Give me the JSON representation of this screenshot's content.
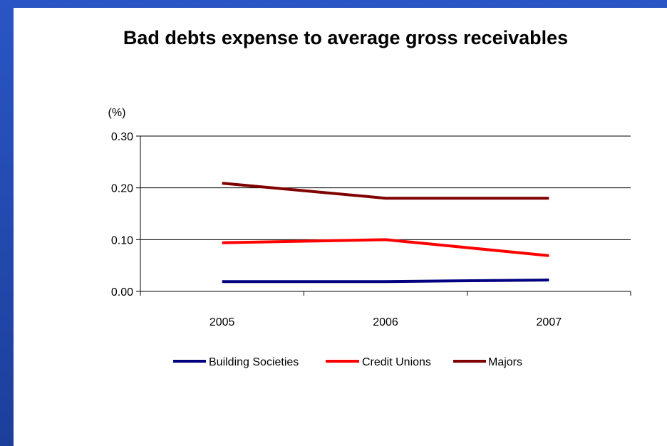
{
  "chart_data": {
    "type": "line",
    "title": "Bad debts expense to average gross receivables",
    "ylabel": "(%)",
    "xlabel": "",
    "categories": [
      "2005",
      "2006",
      "2007"
    ],
    "ylim": [
      0,
      0.3
    ],
    "yticks": [
      "0.00",
      "0.10",
      "0.20",
      "0.30"
    ],
    "grid": true,
    "legend": "bottom",
    "series": [
      {
        "name": "Building Societies",
        "color": "#000080",
        "values": [
          0.019,
          0.019,
          0.022
        ]
      },
      {
        "name": "Credit Unions",
        "color": "#ff0000",
        "values": [
          0.094,
          0.1,
          0.069
        ]
      },
      {
        "name": "Majors",
        "color": "#800000",
        "values": [
          0.209,
          0.18,
          0.18
        ]
      }
    ]
  }
}
